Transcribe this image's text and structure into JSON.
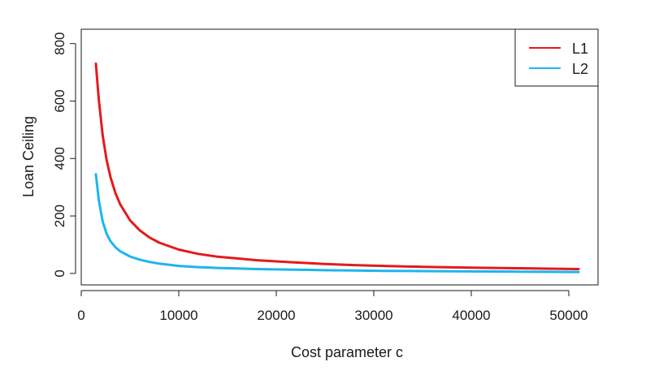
{
  "chart_data": {
    "type": "line",
    "title": "",
    "xlabel": "Cost parameter c",
    "ylabel": "Loan Ceiling",
    "xlim": [
      0,
      53000
    ],
    "ylim": [
      -40,
      850
    ],
    "xticks": [
      0,
      10000,
      20000,
      30000,
      40000,
      50000
    ],
    "xtick_labels": [
      "0",
      "10000",
      "20000",
      "30000",
      "40000",
      "50000"
    ],
    "yticks": [
      0,
      200,
      400,
      600,
      800
    ],
    "ytick_labels": [
      "0",
      "200",
      "400",
      "600",
      "800"
    ],
    "grid": false,
    "legend_position": "top-right",
    "x": [
      1500,
      1800,
      2200,
      2600,
      3000,
      3500,
      4000,
      5000,
      6000,
      7000,
      8000,
      10000,
      12000,
      14000,
      16000,
      18000,
      20000,
      22000,
      25000,
      28000,
      31000,
      35000,
      40000,
      45000,
      51000
    ],
    "series": [
      {
        "name": "L1",
        "color": "#e41a1c",
        "values": [
          730,
          605,
          480,
          395,
          335,
          280,
          240,
          185,
          150,
          125,
          107,
          83,
          68,
          58,
          52,
          46,
          42,
          38,
          33,
          29,
          26,
          23,
          20,
          18,
          15
        ]
      },
      {
        "name": "L2",
        "color": "#1cb5ef",
        "values": [
          345,
          255,
          180,
          138,
          112,
          91,
          77,
          59,
          48,
          40,
          34,
          26,
          22,
          19,
          17,
          15,
          14,
          13,
          11,
          10,
          9,
          8,
          7,
          6,
          5
        ]
      }
    ]
  }
}
